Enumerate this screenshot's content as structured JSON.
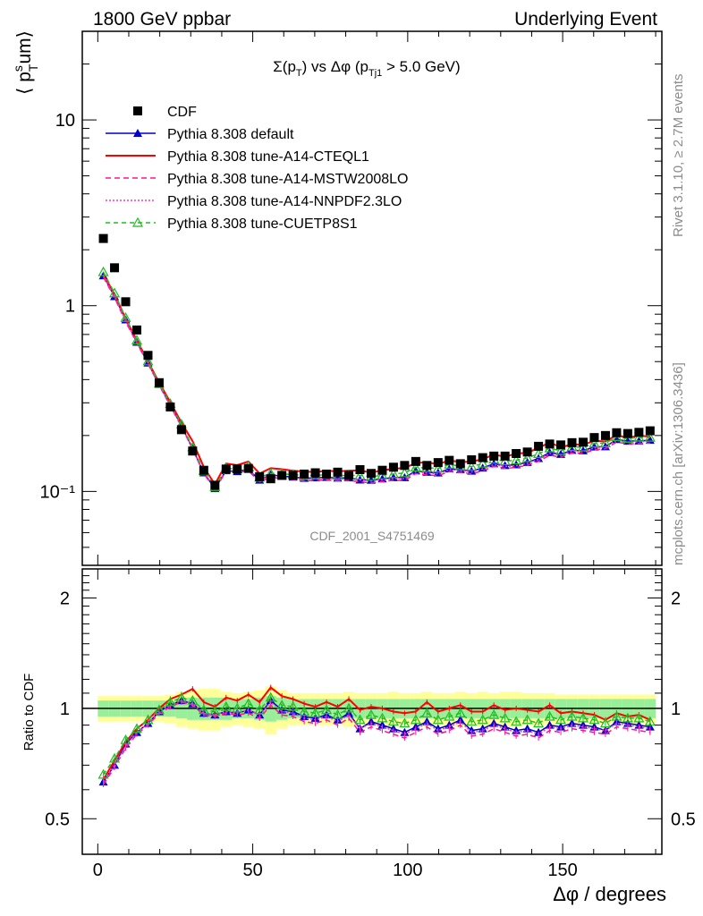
{
  "header": {
    "left": "1800 GeV ppbar",
    "right": "Underlying Event"
  },
  "side": {
    "rivet": "Rivet 3.1.10, ≥ 2.7M events",
    "mcplots": "mcplots.cern.ch [arXiv:1306.3436]"
  },
  "chart_data": [
    {
      "type": "scatter",
      "title": "Σ(p_T) vs Δφ (p_Tj1 > 5.0 GeV)",
      "watermark": "CDF_2001_S4751469",
      "ylabel": "⟨ p_T^s um⟩",
      "xlabel": "Δφ / degrees",
      "xlim": [
        -5,
        182
      ],
      "ylim": [
        0.04,
        30
      ],
      "yscale": "log",
      "y_ticks": [
        "10⁻¹",
        "1",
        "10"
      ],
      "x_ticks": [
        "0",
        "50",
        "100",
        "150"
      ],
      "legend_position": "top-left",
      "x": [
        1.8,
        5.4,
        9.0,
        12.6,
        16.2,
        19.8,
        23.4,
        27.0,
        30.6,
        34.2,
        37.8,
        41.4,
        45.0,
        48.6,
        52.2,
        55.8,
        59.4,
        63.0,
        66.6,
        70.2,
        73.8,
        77.4,
        81.0,
        84.6,
        88.2,
        91.8,
        95.4,
        99.0,
        102.6,
        106.2,
        109.8,
        113.4,
        117.0,
        120.6,
        124.2,
        127.8,
        131.4,
        135.0,
        138.6,
        142.2,
        145.8,
        149.4,
        153.0,
        156.6,
        160.2,
        163.8,
        167.4,
        171.0,
        174.6,
        178.2
      ],
      "series": [
        {
          "name": "CDF",
          "color": "#000000",
          "marker": "square",
          "values": [
            2.3,
            1.6,
            1.05,
            0.74,
            0.54,
            0.385,
            0.285,
            0.215,
            0.165,
            0.13,
            0.108,
            0.132,
            0.132,
            0.133,
            0.12,
            0.117,
            0.122,
            0.122,
            0.124,
            0.126,
            0.124,
            0.127,
            0.122,
            0.131,
            0.125,
            0.13,
            0.135,
            0.138,
            0.145,
            0.138,
            0.143,
            0.147,
            0.141,
            0.148,
            0.152,
            0.155,
            0.155,
            0.16,
            0.163,
            0.175,
            0.18,
            0.178,
            0.183,
            0.184,
            0.195,
            0.2,
            0.207,
            0.205,
            0.208,
            0.212
          ]
        },
        {
          "name": "Pythia 8.308 default",
          "color": "#0000cc",
          "marker": "triangle",
          "dash": "",
          "ratio": [
            0.63,
            0.7,
            0.8,
            0.86,
            0.91,
            0.98,
            1.02,
            1.05,
            1.03,
            0.97,
            0.96,
            0.98,
            0.97,
            0.99,
            0.96,
            1.05,
            0.99,
            0.98,
            0.95,
            0.94,
            0.96,
            0.93,
            0.97,
            0.88,
            0.92,
            0.9,
            0.88,
            0.86,
            0.89,
            0.92,
            0.88,
            0.9,
            0.93,
            0.87,
            0.88,
            0.91,
            0.89,
            0.87,
            0.88,
            0.86,
            0.9,
            0.89,
            0.91,
            0.9,
            0.89,
            0.87,
            0.92,
            0.91,
            0.9,
            0.89
          ]
        },
        {
          "name": "Pythia 8.308 tune-A14-CTEQL1",
          "color": "#ff0000",
          "marker": "",
          "dash": "",
          "ratio": [
            0.64,
            0.72,
            0.81,
            0.88,
            0.93,
            1.0,
            1.06,
            1.09,
            1.13,
            1.04,
            1.01,
            1.07,
            1.05,
            1.09,
            1.04,
            1.14,
            1.08,
            1.06,
            1.03,
            1.01,
            1.04,
            1.01,
            1.06,
            0.99,
            1.01,
            1.0,
            0.98,
            0.97,
            0.98,
            1.04,
            0.98,
            1.0,
            1.02,
            0.98,
            0.98,
            1.02,
            0.99,
            1.0,
            0.99,
            0.98,
            1.02,
            0.97,
            0.98,
            0.97,
            0.96,
            0.93,
            0.97,
            0.95,
            0.96,
            0.93
          ]
        },
        {
          "name": "Pythia 8.308 tune-A14-MSTW2008LO",
          "color": "#ff1493",
          "marker": "",
          "dash": "6,4",
          "ratio": [
            0.62,
            0.69,
            0.78,
            0.85,
            0.9,
            0.97,
            1.01,
            1.04,
            1.02,
            0.96,
            0.95,
            0.97,
            0.96,
            0.97,
            0.94,
            1.02,
            0.96,
            0.95,
            0.92,
            0.91,
            0.93,
            0.9,
            0.94,
            0.86,
            0.89,
            0.87,
            0.85,
            0.83,
            0.86,
            0.89,
            0.85,
            0.87,
            0.9,
            0.84,
            0.85,
            0.88,
            0.86,
            0.84,
            0.85,
            0.83,
            0.87,
            0.86,
            0.88,
            0.87,
            0.86,
            0.85,
            0.89,
            0.88,
            0.87,
            0.86
          ]
        },
        {
          "name": "Pythia 8.308 tune-A14-NNPDF2.3LO",
          "color": "#ff33cc",
          "marker": "",
          "dash": "2,2",
          "ratio": [
            0.63,
            0.7,
            0.79,
            0.86,
            0.91,
            0.98,
            1.02,
            1.05,
            1.03,
            0.97,
            0.96,
            0.98,
            0.97,
            0.99,
            0.96,
            1.04,
            0.98,
            0.97,
            0.94,
            0.93,
            0.95,
            0.92,
            0.96,
            0.88,
            0.91,
            0.89,
            0.87,
            0.85,
            0.88,
            0.91,
            0.87,
            0.89,
            0.92,
            0.86,
            0.87,
            0.9,
            0.88,
            0.86,
            0.87,
            0.85,
            0.89,
            0.88,
            0.9,
            0.89,
            0.88,
            0.87,
            0.91,
            0.9,
            0.89,
            0.88
          ]
        },
        {
          "name": "Pythia 8.308 tune-CUETP8S1",
          "color": "#22bb22",
          "marker": "open-triangle",
          "dash": "5,4",
          "ratio": [
            0.66,
            0.73,
            0.82,
            0.88,
            0.93,
            0.99,
            1.04,
            1.07,
            1.05,
            0.99,
            0.98,
            1.01,
            1.0,
            1.03,
            0.99,
            1.07,
            1.02,
            1.01,
            0.98,
            0.97,
            0.99,
            0.96,
            1.0,
            0.93,
            0.96,
            0.94,
            0.92,
            0.91,
            0.93,
            0.97,
            0.93,
            0.95,
            0.97,
            0.92,
            0.93,
            0.96,
            0.94,
            0.92,
            0.93,
            0.91,
            0.95,
            0.93,
            0.95,
            0.94,
            0.93,
            0.91,
            0.95,
            0.94,
            0.94,
            0.92
          ]
        }
      ]
    },
    {
      "type": "scatter",
      "ylabel": "Ratio to CDF",
      "yscale": "log",
      "ylim": [
        0.4,
        2.4
      ],
      "y_ticks": [
        "0.5",
        "1",
        "2"
      ],
      "reference_line": 1,
      "band_green_halfwidth": [
        0.05,
        0.05,
        0.05,
        0.05,
        0.05,
        0.05,
        0.05,
        0.06,
        0.07,
        0.07,
        0.07,
        0.07,
        0.06,
        0.06,
        0.07,
        0.08,
        0.07,
        0.06,
        0.06,
        0.06,
        0.06,
        0.06,
        0.06,
        0.06,
        0.06,
        0.06,
        0.06,
        0.06,
        0.06,
        0.06,
        0.06,
        0.06,
        0.06,
        0.06,
        0.06,
        0.06,
        0.06,
        0.06,
        0.06,
        0.06,
        0.06,
        0.06,
        0.06,
        0.06,
        0.06,
        0.06,
        0.06,
        0.06,
        0.06,
        0.06
      ],
      "band_yellow_halfwidth": [
        0.08,
        0.08,
        0.08,
        0.08,
        0.08,
        0.08,
        0.09,
        0.11,
        0.12,
        0.13,
        0.13,
        0.11,
        0.1,
        0.11,
        0.12,
        0.15,
        0.12,
        0.1,
        0.1,
        0.1,
        0.1,
        0.1,
        0.11,
        0.1,
        0.1,
        0.1,
        0.11,
        0.1,
        0.1,
        0.11,
        0.1,
        0.1,
        0.11,
        0.1,
        0.11,
        0.1,
        0.11,
        0.11,
        0.1,
        0.1,
        0.1,
        0.09,
        0.09,
        0.09,
        0.09,
        0.09,
        0.09,
        0.09,
        0.09,
        0.09
      ]
    }
  ]
}
